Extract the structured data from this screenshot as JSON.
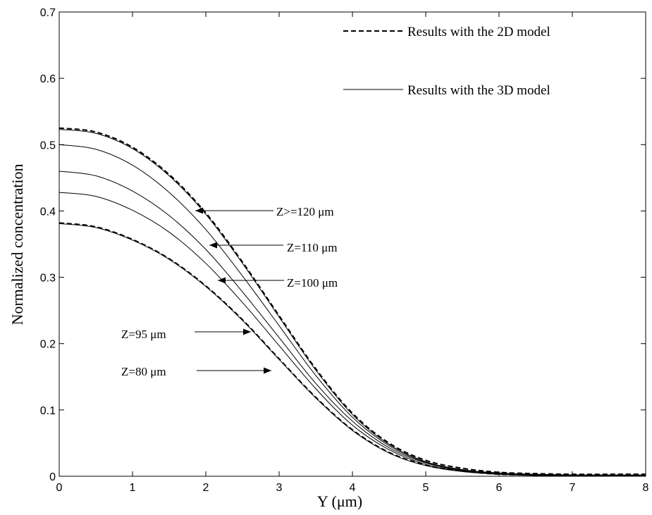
{
  "chart_data": {
    "type": "line",
    "title": "",
    "xlabel": "Y (μm)",
    "ylabel": "Normalized concentration",
    "xlim": [
      0,
      8
    ],
    "ylim": [
      0,
      0.7
    ],
    "xticks": [
      "0",
      "1",
      "2",
      "3",
      "4",
      "5",
      "6",
      "7",
      "8"
    ],
    "yticks": [
      "0",
      "0.1",
      "0.2",
      "0.3",
      "0.4",
      "0.5",
      "0.6",
      "0.7"
    ],
    "grid": false,
    "legend_position": "top-right",
    "legend": [
      {
        "label": "Results with the 2D model",
        "style": "dashed"
      },
      {
        "label": "Results with the 3D model",
        "style": "solid"
      }
    ],
    "annotations": [
      {
        "text": "Z>=120 μm",
        "y": 0.4
      },
      {
        "text": "Z=110 μm",
        "y": 0.35
      },
      {
        "text": "Z=100 μm",
        "y": 0.295
      },
      {
        "text": "Z=95 μm",
        "y": 0.214
      },
      {
        "text": "Z=80 μm",
        "y": 0.155
      }
    ],
    "x": [
      0,
      0.5,
      1,
      1.5,
      2,
      2.5,
      3,
      3.5,
      4,
      4.5,
      5,
      5.5,
      6,
      6.5,
      7,
      7.5,
      8
    ],
    "series": [
      {
        "style": "dashed",
        "values": [
          0.525,
          0.519,
          0.496,
          0.455,
          0.397,
          0.323,
          0.242,
          0.162,
          0.095,
          0.05,
          0.024,
          0.012,
          0.006,
          0.004,
          0.003,
          0.003,
          0.003
        ]
      },
      {
        "style": "solid",
        "values": [
          0.523,
          0.517,
          0.494,
          0.453,
          0.395,
          0.321,
          0.24,
          0.16,
          0.093,
          0.048,
          0.022,
          0.01,
          0.005,
          0.003,
          0.002,
          0.002,
          0.002
        ]
      },
      {
        "style": "solid",
        "values": [
          0.5,
          0.493,
          0.469,
          0.428,
          0.372,
          0.302,
          0.227,
          0.152,
          0.089,
          0.046,
          0.021,
          0.01,
          0.004,
          0.002,
          0.002,
          0.001,
          0.001
        ]
      },
      {
        "style": "solid",
        "values": [
          0.46,
          0.453,
          0.43,
          0.393,
          0.342,
          0.278,
          0.209,
          0.14,
          0.083,
          0.043,
          0.02,
          0.009,
          0.004,
          0.002,
          0.001,
          0.001,
          0.001
        ]
      },
      {
        "style": "solid",
        "values": [
          0.428,
          0.422,
          0.401,
          0.368,
          0.321,
          0.262,
          0.197,
          0.132,
          0.077,
          0.04,
          0.018,
          0.008,
          0.003,
          0.002,
          0.001,
          0.001,
          0.001
        ]
      },
      {
        "style": "dashed",
        "values": [
          0.382,
          0.376,
          0.357,
          0.328,
          0.287,
          0.236,
          0.177,
          0.119,
          0.07,
          0.036,
          0.017,
          0.008,
          0.003,
          0.002,
          0.001,
          0.001,
          0.001
        ]
      },
      {
        "style": "solid",
        "values": [
          0.381,
          0.375,
          0.356,
          0.327,
          0.286,
          0.235,
          0.176,
          0.118,
          0.069,
          0.035,
          0.016,
          0.007,
          0.003,
          0.001,
          0.001,
          0.001,
          0.001
        ]
      }
    ]
  }
}
